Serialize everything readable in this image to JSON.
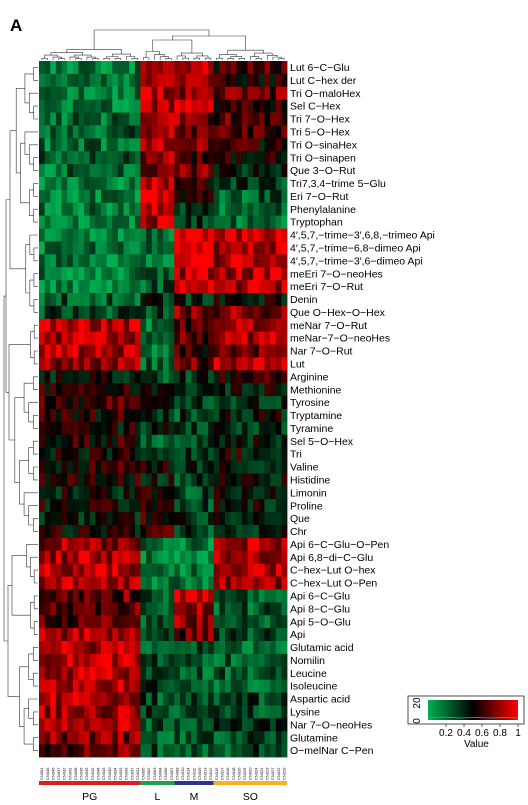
{
  "panel_label": "A",
  "chart_data": {
    "type": "heatmap",
    "rows": [
      "Lut 6−C−Glu",
      "Lut C−hex der",
      "Tri O−maloHex",
      "Sel C−Hex",
      "Tri 7−O−Hex",
      "Tri 5−O−Hex",
      "Tri O−sinaHex",
      "Tri O−sinapen",
      "Que 3−O−Rut",
      "Tri7,3,4−trime 5−Glu",
      "Eri 7−O−Rut",
      "Phenylalanine",
      "Tryptophan",
      "4′,5,7,−trime−3′,6,8,−trimeo Api",
      "4′,5,7,−trime−6,8−dimeo Api",
      "4′,5,7,−trime−3′,6−dimeo Api",
      "meEri 7−O−neoHes",
      "meEri 7−O−Rut",
      "Denin",
      "Que O−Hex−O−Hex",
      "meNar 7−O−Rut",
      "meNar−7−O−neoHes",
      "Nar 7−O−Rut",
      "Lut",
      "Arginine",
      "Methionine",
      "Tyrosine",
      "Tryptamine",
      "Tyramine",
      "Sel 5−O−Hex",
      "Tri",
      "Valine",
      "Histidine",
      "Limonin",
      "Proline",
      "Que",
      "Chr",
      "Api 6−C−Glu−O−Pen",
      "Api 6,8−di−C−Glu",
      "C−hex−Lut O−hex",
      "C−hex−Lut O−Pen",
      "Api 6−C−Glu",
      "Api 8−C−Glu",
      "Api 5−O−Glu",
      "Api",
      "Glutamic acid",
      "Nomilin",
      "Leucine",
      "Isoleucine",
      "Aspartic acid",
      "Lysine",
      "Nar 7−O−neoHes",
      "Glutamine",
      "O−melNar C−Pen"
    ],
    "columns": [
      "CN001",
      "CN045",
      "CN046",
      "CN047",
      "CN032",
      "CN041",
      "CN038",
      "CN036",
      "CN035",
      "CN042",
      "CN044",
      "CN043",
      "CN040",
      "CN034",
      "CN033",
      "CN039",
      "CN037",
      "CN031",
      "CN005",
      "CN002",
      "CN003",
      "CN004",
      "CN006",
      "CN007",
      "CN008",
      "CN010",
      "CN014",
      "CN011",
      "CN009",
      "CN013",
      "CN012",
      "CN015",
      "CN017",
      "CN016",
      "CN018",
      "CN026",
      "CN025",
      "CN020",
      "CN024",
      "CN021",
      "CN023",
      "CN027",
      "CN022",
      "CN019"
    ],
    "groups": [
      {
        "name": "PG",
        "start": 0,
        "count": 18,
        "color": "#d91f26"
      },
      {
        "name": "L",
        "start": 18,
        "count": 6,
        "color": "#1aa34a"
      },
      {
        "name": "M",
        "start": 24,
        "count": 7,
        "color": "#2e3192"
      },
      {
        "name": "SO",
        "start": 31,
        "count": 13,
        "color": "#f7b21e"
      }
    ],
    "row_profiles": [
      [
        0.15,
        0.85,
        0.9,
        0.6
      ],
      [
        0.15,
        0.85,
        0.85,
        0.55
      ],
      [
        0.15,
        0.85,
        0.75,
        0.7
      ],
      [
        0.15,
        0.8,
        0.9,
        0.55
      ],
      [
        0.2,
        0.85,
        0.75,
        0.65
      ],
      [
        0.25,
        0.85,
        0.7,
        0.65
      ],
      [
        0.2,
        0.8,
        0.7,
        0.55
      ],
      [
        0.25,
        0.8,
        0.65,
        0.55
      ],
      [
        0.2,
        0.75,
        0.7,
        0.4
      ],
      [
        0.15,
        0.9,
        0.55,
        0.35
      ],
      [
        0.15,
        0.95,
        0.6,
        0.25
      ],
      [
        0.15,
        0.9,
        0.3,
        0.2
      ],
      [
        0.15,
        0.85,
        0.35,
        0.2
      ],
      [
        0.15,
        0.2,
        0.9,
        0.85
      ],
      [
        0.15,
        0.2,
        0.9,
        0.85
      ],
      [
        0.15,
        0.2,
        0.9,
        0.85
      ],
      [
        0.15,
        0.2,
        0.85,
        0.85
      ],
      [
        0.15,
        0.25,
        0.85,
        0.85
      ],
      [
        0.25,
        0.4,
        0.4,
        0.45
      ],
      [
        0.3,
        0.35,
        0.75,
        0.75
      ],
      [
        0.85,
        0.15,
        0.6,
        0.8
      ],
      [
        0.85,
        0.15,
        0.7,
        0.8
      ],
      [
        0.85,
        0.15,
        0.6,
        0.75
      ],
      [
        0.8,
        0.2,
        0.7,
        0.85
      ],
      [
        0.45,
        0.3,
        0.35,
        0.55
      ],
      [
        0.55,
        0.45,
        0.35,
        0.45
      ],
      [
        0.6,
        0.55,
        0.3,
        0.4
      ],
      [
        0.55,
        0.35,
        0.3,
        0.45
      ],
      [
        0.5,
        0.4,
        0.3,
        0.4
      ],
      [
        0.55,
        0.25,
        0.3,
        0.45
      ],
      [
        0.5,
        0.4,
        0.35,
        0.5
      ],
      [
        0.55,
        0.5,
        0.35,
        0.4
      ],
      [
        0.55,
        0.45,
        0.3,
        0.45
      ],
      [
        0.45,
        0.5,
        0.3,
        0.5
      ],
      [
        0.5,
        0.55,
        0.3,
        0.45
      ],
      [
        0.45,
        0.6,
        0.35,
        0.45
      ],
      [
        0.5,
        0.55,
        0.3,
        0.45
      ],
      [
        0.8,
        0.2,
        0.15,
        0.85
      ],
      [
        0.8,
        0.2,
        0.15,
        0.85
      ],
      [
        0.85,
        0.2,
        0.2,
        0.85
      ],
      [
        0.85,
        0.2,
        0.2,
        0.8
      ],
      [
        0.7,
        0.3,
        0.85,
        0.25
      ],
      [
        0.7,
        0.3,
        0.8,
        0.25
      ],
      [
        0.65,
        0.3,
        0.75,
        0.25
      ],
      [
        0.8,
        0.25,
        0.7,
        0.3
      ],
      [
        0.85,
        0.3,
        0.3,
        0.25
      ],
      [
        0.85,
        0.35,
        0.3,
        0.25
      ],
      [
        0.85,
        0.3,
        0.25,
        0.25
      ],
      [
        0.85,
        0.3,
        0.25,
        0.25
      ],
      [
        0.85,
        0.3,
        0.25,
        0.3
      ],
      [
        0.8,
        0.3,
        0.25,
        0.3
      ],
      [
        0.85,
        0.25,
        0.2,
        0.35
      ],
      [
        0.75,
        0.25,
        0.25,
        0.3
      ],
      [
        0.7,
        0.3,
        0.25,
        0.3
      ]
    ],
    "color_key": {
      "title": "Value",
      "ticks": [
        "0.2",
        "0.4",
        "0.6",
        "0.8",
        "1"
      ],
      "density_ticks": [
        "0",
        "20"
      ],
      "range": [
        0,
        1
      ],
      "low_color": "#00b050",
      "mid_color": "#000000",
      "high_color": "#ff0000"
    }
  }
}
